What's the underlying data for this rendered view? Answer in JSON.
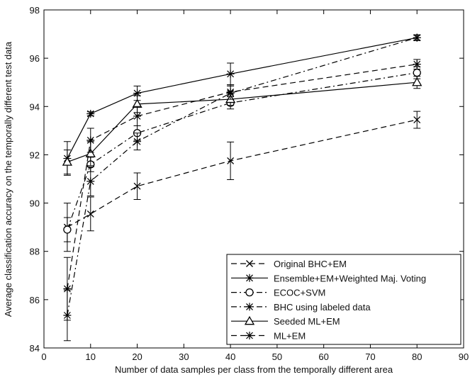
{
  "chart_data": {
    "type": "line",
    "title": "",
    "xlabel": "Number of data samples per class from the temporally different area",
    "ylabel": "Average classification accuracy on the temporally different test data",
    "xlim": [
      0,
      90
    ],
    "ylim": [
      84,
      98
    ],
    "xticks": [
      0,
      10,
      20,
      30,
      40,
      50,
      60,
      70,
      80,
      90
    ],
    "yticks": [
      84,
      86,
      88,
      90,
      92,
      94,
      96,
      98
    ],
    "x": [
      5,
      10,
      20,
      40,
      80
    ],
    "grid": false,
    "legend_position": "bottom-right",
    "series": [
      {
        "name": "Original BHC+EM",
        "line_style": "dashed",
        "marker": "x",
        "values": [
          89.0,
          89.55,
          90.7,
          91.75,
          93.45
        ],
        "errors": [
          1.0,
          0.7,
          0.55,
          0.78,
          0.35
        ]
      },
      {
        "name": "Ensemble+EM+Weighted Maj. Voting",
        "line_style": "solid",
        "marker": "star",
        "values": [
          91.85,
          93.7,
          94.55,
          95.35,
          96.85
        ],
        "errors": [
          0.7,
          0.08,
          0.3,
          0.45,
          0.12
        ]
      },
      {
        "name": "ECOC+SVM",
        "line_style": "dashdot",
        "marker": "circle",
        "values": [
          88.9,
          91.6,
          92.9,
          94.15,
          95.4
        ],
        "errors": [
          0.5,
          0.3,
          0.3,
          0.25,
          0.25
        ]
      },
      {
        "name": "BHC using labeled data",
        "line_style": "dashdot",
        "marker": "star",
        "values": [
          85.35,
          90.9,
          92.55,
          94.55,
          96.85
        ],
        "errors": [
          1.05,
          0.6,
          0.35,
          0.3,
          0.1
        ]
      },
      {
        "name": "Seeded ML+EM",
        "line_style": "solid",
        "marker": "triangle",
        "values": [
          91.7,
          92.05,
          94.1,
          94.3,
          95.0
        ],
        "errors": [
          0.5,
          0.5,
          0.35,
          0.25,
          0.25
        ]
      },
      {
        "name": "ML+EM",
        "line_style": "dashed",
        "marker": "star",
        "values": [
          86.45,
          92.6,
          93.6,
          94.6,
          95.75
        ],
        "errors": [
          1.3,
          0.5,
          0.4,
          0.3,
          0.2
        ]
      }
    ]
  }
}
